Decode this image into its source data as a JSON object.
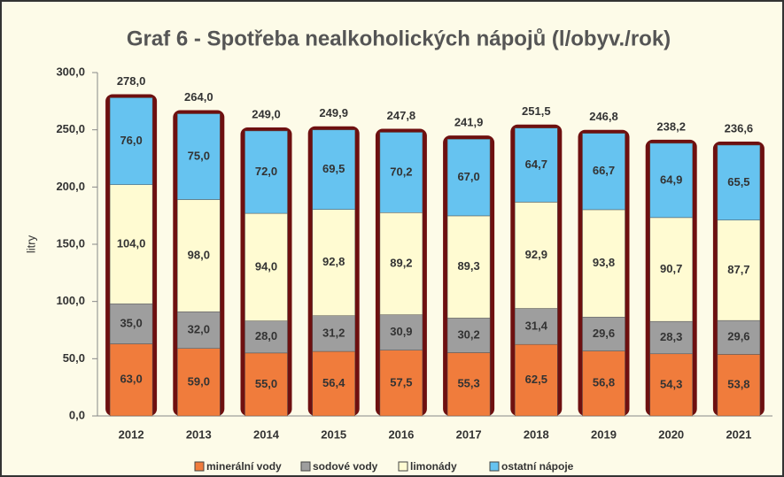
{
  "chart_data": {
    "type": "stacked_bar",
    "title": "Graf 6 - Spotřeba nealkoholických nápojů  (l/obyv./rok)",
    "y_label": "litry",
    "categories": [
      "2012",
      "2013",
      "2014",
      "2015",
      "2016",
      "2017",
      "2018",
      "2019",
      "2020",
      "2021"
    ],
    "series": [
      {
        "name": "minerální vody",
        "color": "#f07c3c",
        "values": [
          63.0,
          59.0,
          55.0,
          56.4,
          57.5,
          55.3,
          62.5,
          56.8,
          54.3,
          53.8
        ],
        "value_labels": [
          "63,0",
          "59,0",
          "55,0",
          "56,4",
          "57,5",
          "55,3",
          "62,5",
          "56,8",
          "54,3",
          "53,8"
        ]
      },
      {
        "name": "sodové vody",
        "color": "#9e9e9e",
        "values": [
          35.0,
          32.0,
          28.0,
          31.2,
          30.9,
          30.2,
          31.4,
          29.6,
          28.3,
          29.6
        ],
        "value_labels": [
          "35,0",
          "32,0",
          "28,0",
          "31,2",
          "30,9",
          "30,2",
          "31,4",
          "29,6",
          "28,3",
          "29,6"
        ]
      },
      {
        "name": "limonády",
        "color": "#fffbd2",
        "values": [
          104.0,
          98.0,
          94.0,
          92.8,
          89.2,
          89.3,
          92.9,
          93.8,
          90.7,
          87.7
        ],
        "value_labels": [
          "104,0",
          "98,0",
          "94,0",
          "92,8",
          "89,2",
          "89,3",
          "92,9",
          "93,8",
          "90,7",
          "87,7"
        ]
      },
      {
        "name": "ostatní nápoje",
        "color": "#66c3f0",
        "values": [
          76.0,
          75.0,
          72.0,
          69.5,
          70.2,
          67.0,
          64.7,
          66.7,
          64.9,
          65.5
        ],
        "value_labels": [
          "76,0",
          "75,0",
          "72,0",
          "69,5",
          "70,2",
          "67,0",
          "64,7",
          "66,7",
          "64,9",
          "65,5"
        ]
      }
    ],
    "totals": [
      278.0,
      264.0,
      249.0,
      249.9,
      247.8,
      241.9,
      251.5,
      246.8,
      238.2,
      236.6
    ],
    "total_labels": [
      "278,0",
      "264,0",
      "249,0",
      "249,9",
      "247,8",
      "241,9",
      "251,5",
      "246,8",
      "238,2",
      "236,6"
    ],
    "outline_color": "#6e1010",
    "ylim": [
      0,
      300
    ],
    "yticks": [
      {
        "value": 0,
        "label": "0,0"
      },
      {
        "value": 50,
        "label": "50,0"
      },
      {
        "value": 100,
        "label": "100,0"
      },
      {
        "value": 150,
        "label": "150,0"
      },
      {
        "value": 200,
        "label": "200,0"
      },
      {
        "value": 250,
        "label": "250,0"
      },
      {
        "value": 300,
        "label": "300,0"
      }
    ],
    "legend": "bottom"
  }
}
